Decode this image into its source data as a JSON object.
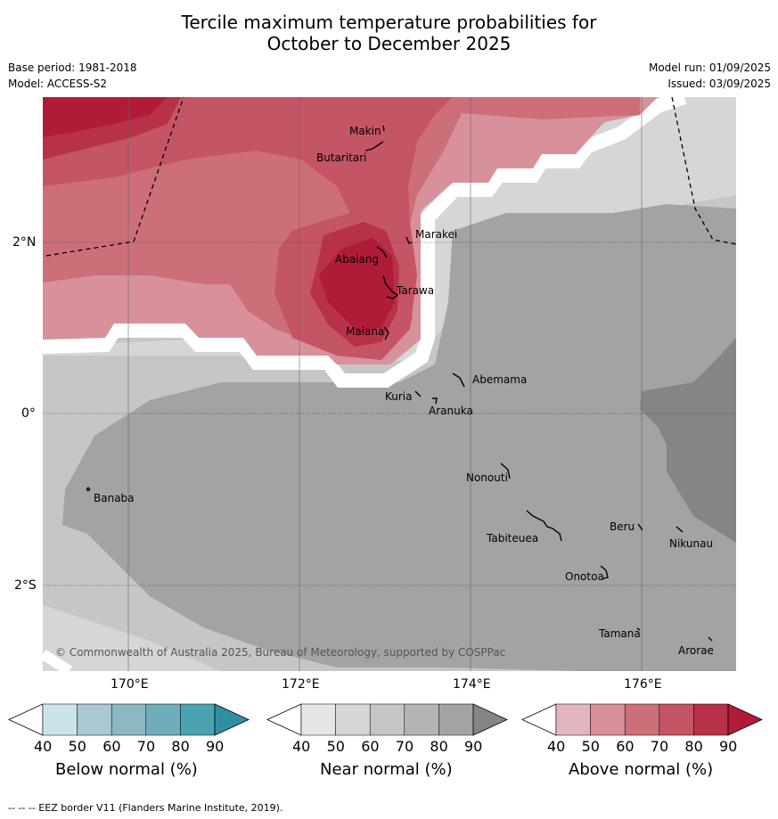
{
  "title_line1": "Tercile maximum temperature probabilities for",
  "title_line2": "October to December 2025",
  "base_period": "Base period: 1981-2018",
  "model": "Model: ACCESS-S2",
  "model_run": "Model run: 01/09/2025",
  "issued": "Issued: 03/09/2025",
  "lat_labels": [
    "2°N",
    "0°",
    "2°S"
  ],
  "lon_labels": [
    "170°E",
    "172°E",
    "174°E",
    "176°E"
  ],
  "places": [
    "Makin",
    "Butaritari",
    "Marakei",
    "Abaiang",
    "Tarawa",
    "Maiana",
    "Abemama",
    "Kuria",
    "Aranuka",
    "Banaba",
    "Nonouti",
    "Beru",
    "Tabiteuea",
    "Nikunau",
    "Onotoa",
    "Tamana",
    "Arorae"
  ],
  "copyright": "© Commonwealth of Australia 2025, Bureau of Meteorology, supported by COSPPac",
  "colorbars": [
    {
      "title": "Below normal (%)",
      "ticks": [
        "40",
        "50",
        "60",
        "70",
        "80",
        "90"
      ],
      "colors": [
        "#cde3ea",
        "#a9c8cf",
        "#8db8c3",
        "#6fadbb",
        "#4ba3b1",
        "#2f8fa0"
      ]
    },
    {
      "title": "Near normal (%)",
      "ticks": [
        "40",
        "50",
        "60",
        "70",
        "80",
        "90"
      ],
      "colors": [
        "#e6e6e6",
        "#d6d6d6",
        "#c6c6c6",
        "#b4b4b4",
        "#a3a3a3",
        "#858585"
      ]
    },
    {
      "title": "Above normal (%)",
      "ticks": [
        "40",
        "50",
        "60",
        "70",
        "80",
        "90"
      ],
      "colors": [
        "#e3b6bd",
        "#d8919a",
        "#cc6f79",
        "#c45564",
        "#b73148",
        "#b01c38"
      ]
    }
  ],
  "footer": "--  --  -- EEZ border V11 (Flanders Marine Institute, 2019)."
}
